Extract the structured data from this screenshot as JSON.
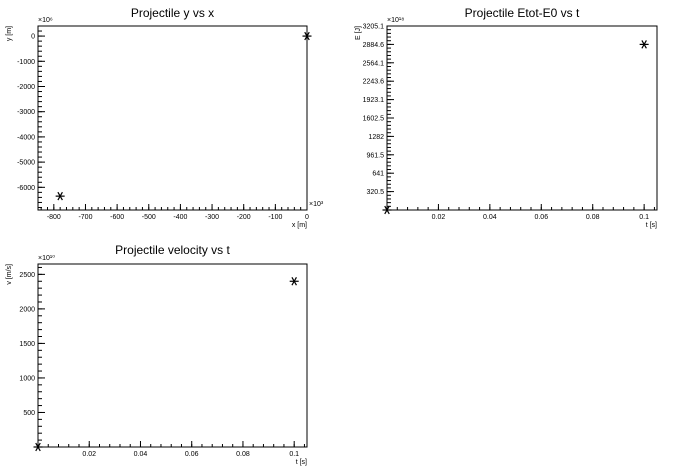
{
  "chart_data": [
    {
      "type": "scatter",
      "title": "Projectile y vs x",
      "xlabel": "x [m]",
      "ylabel": "y [m]",
      "x_exponent": "×10³",
      "y_exponent": "×10⁶",
      "x": [
        -780,
        0
      ],
      "y": [
        -6350,
        0
      ],
      "xlim": [
        -850,
        0
      ],
      "ylim": [
        -6900,
        400
      ],
      "xticks": [
        "-800",
        "-700",
        "-600",
        "-500",
        "-400",
        "-300",
        "-200",
        "-100",
        "0"
      ],
      "xtick_values": [
        -800,
        -700,
        -600,
        -500,
        -400,
        -300,
        -200,
        -100,
        0
      ],
      "yticks": [
        "-6000",
        "-5000",
        "-4000",
        "-3000",
        "-2000",
        "-1000",
        "0"
      ],
      "ytick_values": [
        -6000,
        -5000,
        -4000,
        -3000,
        -2000,
        -1000,
        0
      ],
      "grid": false
    },
    {
      "type": "scatter",
      "title": "Projectile Etot-E0 vs t",
      "xlabel": "t [s]",
      "ylabel": "E [J]",
      "y_exponent": "×10¹⁸",
      "x": [
        0,
        0.1
      ],
      "y": [
        0,
        2884.6
      ],
      "xlim": [
        0,
        0.105
      ],
      "ylim": [
        0,
        3205.1
      ],
      "xticks": [
        "0.02",
        "0.04",
        "0.06",
        "0.08",
        "0.1"
      ],
      "xtick_values": [
        0.02,
        0.04,
        0.06,
        0.08,
        0.1
      ],
      "yticks": [
        "320.5",
        "641",
        "961.5",
        "1282",
        "1602.5",
        "1923.1",
        "2243.6",
        "2564.1",
        "2884.6",
        "3205.1"
      ],
      "ytick_values": [
        320.5,
        641,
        961.5,
        1282,
        1602.5,
        1923.1,
        2243.6,
        2564.1,
        2884.6,
        3205.1
      ],
      "grid": false
    },
    {
      "type": "scatter",
      "title": "Projectile velocity vs t",
      "xlabel": "t [s]",
      "ylabel": "v [m/s]",
      "y_exponent": "×10¹⁰",
      "x": [
        0,
        0.1
      ],
      "y": [
        0,
        2400
      ],
      "xlim": [
        0,
        0.105
      ],
      "ylim": [
        0,
        2650
      ],
      "xticks": [
        "0.02",
        "0.04",
        "0.06",
        "0.08",
        "0.1"
      ],
      "xtick_values": [
        0.02,
        0.04,
        0.06,
        0.08,
        0.1
      ],
      "yticks": [
        "500",
        "1000",
        "1500",
        "2000",
        "2500"
      ],
      "ytick_values": [
        500,
        1000,
        1500,
        2000,
        2500
      ],
      "grid": false
    }
  ]
}
